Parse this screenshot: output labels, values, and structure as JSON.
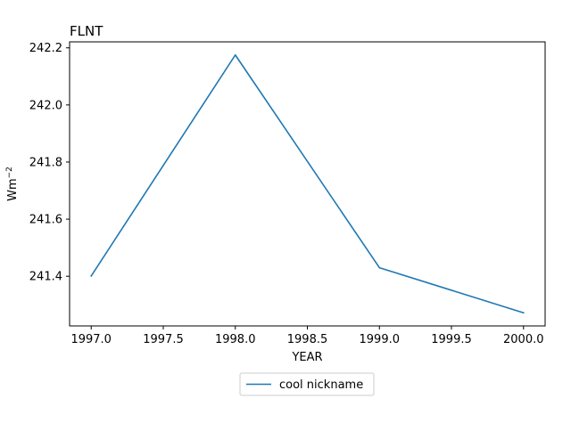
{
  "chart_data": {
    "type": "line",
    "title": "FLNT",
    "xlabel": "YEAR",
    "ylabel": "Wm",
    "ylabel_superscript": "−2",
    "x": [
      1997.0,
      1998.0,
      1999.0,
      2000.0
    ],
    "series": [
      {
        "name": "cool nickname",
        "values": [
          241.401,
          242.175,
          241.43,
          241.272
        ],
        "color": "#1f77b4"
      }
    ],
    "xlim": [
      1996.85,
      2000.15
    ],
    "ylim": [
      241.226,
      242.221
    ],
    "xticks": [
      1997.0,
      1997.5,
      1998.0,
      1998.5,
      1999.0,
      1999.5,
      2000.0
    ],
    "xtick_labels": [
      "1997.0",
      "1997.5",
      "1998.0",
      "1998.5",
      "1999.0",
      "1999.5",
      "2000.0"
    ],
    "yticks": [
      241.4,
      241.6,
      241.8,
      242.0,
      242.2
    ],
    "ytick_labels": [
      "241.4",
      "241.6",
      "241.8",
      "242.0",
      "242.2"
    ],
    "grid": false,
    "legend_position": "below-center"
  }
}
